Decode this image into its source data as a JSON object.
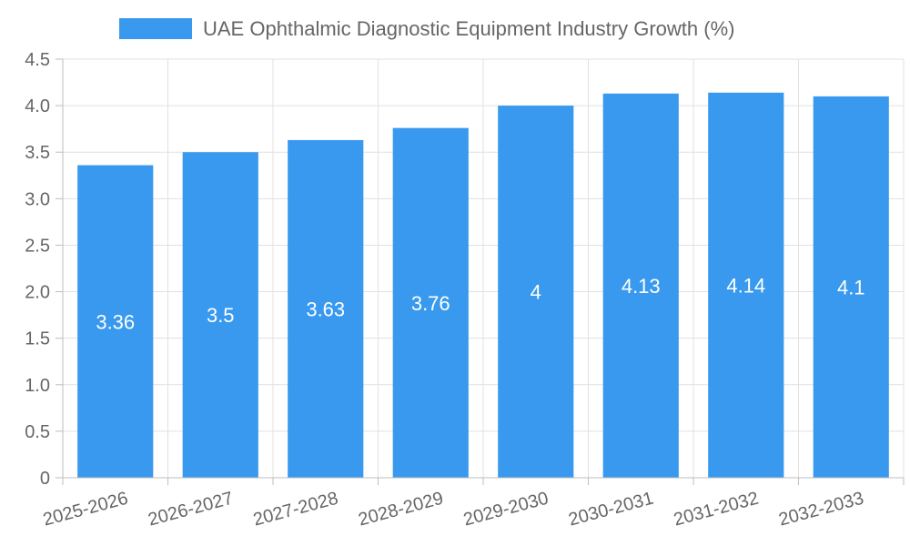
{
  "chart_data": {
    "type": "bar",
    "categories": [
      "2025-2026",
      "2026-2027",
      "2027-2028",
      "2028-2029",
      "2029-2030",
      "2030-2031",
      "2031-2032",
      "2032-2033"
    ],
    "series": [
      {
        "name": "UAE Ophthalmic Diagnostic Equipment Industry Growth (%)",
        "values": [
          3.36,
          3.5,
          3.63,
          3.76,
          4,
          4.13,
          4.14,
          4.1
        ]
      }
    ],
    "data_labels": [
      "3.36",
      "3.5",
      "3.63",
      "3.76",
      "4",
      "4.13",
      "4.14",
      "4.1"
    ],
    "y_ticks": [
      "0",
      "0.5",
      "1.0",
      "1.5",
      "2.0",
      "2.5",
      "3.0",
      "3.5",
      "4.0",
      "4.5"
    ],
    "ylim": [
      0,
      4.5
    ],
    "grid": true,
    "legend_position": "top-center",
    "bar_color": "#3899EE"
  }
}
